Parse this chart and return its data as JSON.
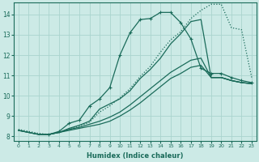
{
  "xlabel": "Humidex (Indice chaleur)",
  "ylabel": "",
  "bg_color": "#cceae6",
  "grid_color": "#aad4ce",
  "line_color": "#1a6b5a",
  "xlim": [
    -0.5,
    23.5
  ],
  "ylim": [
    7.8,
    14.6
  ],
  "xticks": [
    0,
    1,
    2,
    3,
    4,
    5,
    6,
    7,
    8,
    9,
    10,
    11,
    12,
    13,
    14,
    15,
    16,
    17,
    18,
    19,
    20,
    21,
    22,
    23
  ],
  "yticks": [
    8,
    9,
    10,
    11,
    12,
    13,
    14
  ],
  "lines": [
    {
      "x": [
        0,
        1,
        2,
        3,
        4,
        5,
        6,
        7,
        8,
        9,
        10,
        11,
        12,
        13,
        14,
        15,
        16,
        17,
        18,
        19,
        20,
        21,
        22,
        23
      ],
      "y": [
        8.3,
        8.2,
        8.1,
        8.1,
        8.2,
        8.4,
        8.55,
        8.75,
        9.35,
        9.6,
        9.85,
        10.25,
        10.85,
        11.3,
        11.85,
        12.55,
        13.05,
        13.65,
        13.75,
        10.9,
        10.9,
        10.75,
        10.65,
        10.6
      ],
      "style": "solid",
      "marker": null,
      "lw": 0.9
    },
    {
      "x": [
        0,
        1,
        2,
        3,
        4,
        5,
        6,
        7,
        8,
        9,
        10,
        11,
        12,
        13,
        14,
        15,
        16,
        17,
        18,
        19,
        20,
        21,
        22,
        23
      ],
      "y": [
        8.3,
        8.2,
        8.1,
        8.1,
        8.2,
        8.35,
        8.45,
        8.6,
        8.75,
        8.95,
        9.2,
        9.55,
        9.95,
        10.35,
        10.75,
        11.15,
        11.45,
        11.75,
        11.85,
        10.9,
        10.9,
        10.75,
        10.65,
        10.6
      ],
      "style": "solid",
      "marker": null,
      "lw": 0.9
    },
    {
      "x": [
        0,
        1,
        2,
        3,
        4,
        5,
        6,
        7,
        8,
        9,
        10,
        11,
        12,
        13,
        14,
        15,
        16,
        17,
        18,
        19,
        20,
        21,
        22,
        23
      ],
      "y": [
        8.3,
        8.2,
        8.1,
        8.1,
        8.2,
        8.3,
        8.4,
        8.5,
        8.6,
        8.75,
        9.0,
        9.3,
        9.65,
        10.05,
        10.45,
        10.85,
        11.1,
        11.4,
        11.5,
        10.9,
        10.9,
        10.75,
        10.65,
        10.6
      ],
      "style": "solid",
      "marker": null,
      "lw": 0.9
    },
    {
      "x": [
        3,
        4,
        5,
        6,
        7,
        8,
        9,
        10,
        11,
        12,
        13,
        14,
        15,
        16,
        17,
        18,
        19,
        20,
        21,
        22,
        23
      ],
      "y": [
        8.1,
        8.25,
        8.65,
        8.8,
        9.5,
        9.85,
        10.4,
        12.0,
        13.1,
        13.75,
        13.8,
        14.1,
        14.1,
        13.6,
        12.8,
        11.35,
        11.1,
        11.1,
        10.9,
        10.75,
        10.65
      ],
      "style": "solid",
      "marker": "+",
      "lw": 0.9
    },
    {
      "x": [
        0,
        1,
        2,
        3,
        4,
        5,
        6,
        7,
        8,
        9,
        10,
        11,
        12,
        13,
        14,
        15,
        16,
        17,
        18,
        19,
        20,
        21,
        22,
        23
      ],
      "y": [
        8.35,
        8.25,
        8.15,
        8.1,
        8.2,
        8.35,
        8.5,
        8.7,
        9.2,
        9.5,
        9.9,
        10.35,
        10.95,
        11.45,
        12.15,
        12.75,
        13.15,
        13.8,
        14.2,
        14.5,
        14.5,
        13.35,
        13.25,
        10.9
      ],
      "style": "dotted",
      "marker": null,
      "lw": 0.9
    }
  ]
}
